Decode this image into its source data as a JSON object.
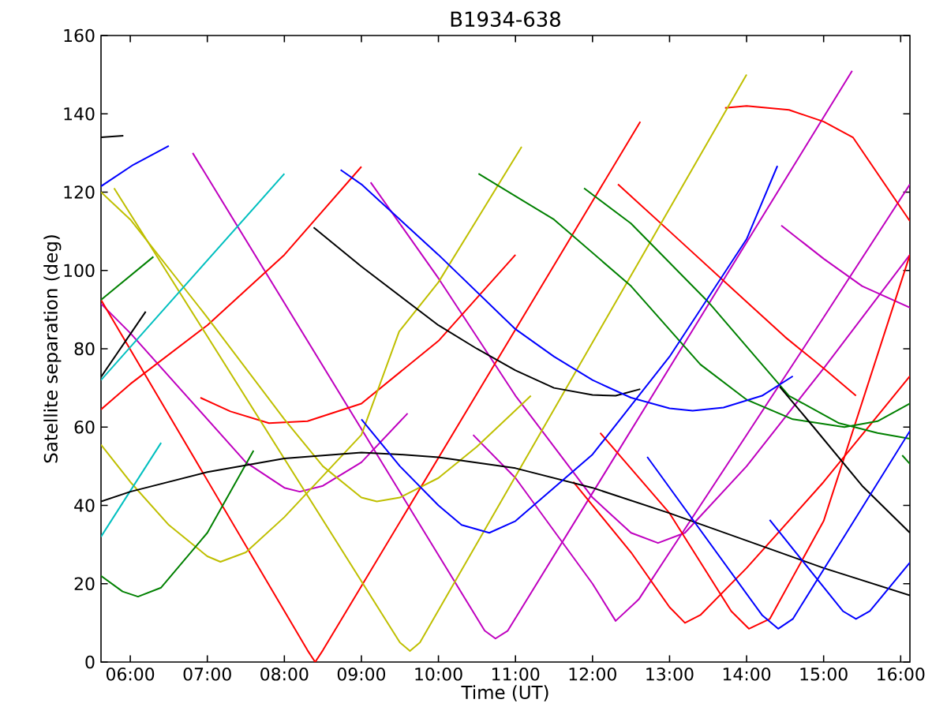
{
  "chart_data": {
    "type": "line",
    "title": "B1934-638",
    "xlabel": "Time (UT)",
    "ylabel": "Satellite separation (deg)",
    "xlim": [
      5.62,
      16.12
    ],
    "ylim": [
      0,
      160
    ],
    "xticks": [
      {
        "value": 6,
        "label": "06:00"
      },
      {
        "value": 7,
        "label": "07:00"
      },
      {
        "value": 8,
        "label": "08:00"
      },
      {
        "value": 9,
        "label": "09:00"
      },
      {
        "value": 10,
        "label": "10:00"
      },
      {
        "value": 11,
        "label": "11:00"
      },
      {
        "value": 12,
        "label": "12:00"
      },
      {
        "value": 13,
        "label": "13:00"
      },
      {
        "value": 14,
        "label": "14:00"
      },
      {
        "value": 15,
        "label": "15:00"
      },
      {
        "value": 16,
        "label": "16:00"
      }
    ],
    "yticks": [
      0,
      20,
      40,
      60,
      80,
      100,
      120,
      140,
      160
    ],
    "grid": false,
    "line_style": "solid",
    "series": [
      {
        "color": "#000000",
        "x": [
          5.62,
          5.91
        ],
        "values": [
          134,
          134.4
        ]
      },
      {
        "color": "#0000ff",
        "x": [
          5.62,
          6.04,
          6.5
        ],
        "values": [
          121.5,
          127,
          131.8
        ]
      },
      {
        "color": "#bf00bf",
        "x": [
          6.81,
          10.6,
          10.74,
          10.9,
          15.37
        ],
        "values": [
          130,
          8,
          6,
          8,
          151
        ]
      },
      {
        "color": "#bf00bf",
        "x": [
          9.12,
          10,
          11,
          12,
          12.5,
          12.85,
          13.2,
          14,
          15,
          16.12
        ],
        "values": [
          122.5,
          98,
          68,
          42,
          33,
          30.4,
          33,
          50,
          75,
          104
        ]
      },
      {
        "color": "#bf00bf",
        "x": [
          10.45,
          11,
          12,
          12.3,
          12.6,
          13,
          14,
          15,
          16.12
        ],
        "values": [
          58,
          47,
          20,
          10.5,
          16,
          28,
          58,
          88,
          122
        ]
      },
      {
        "color": "#bf00bf",
        "x": [
          5.62,
          6,
          7,
          7.5,
          8,
          8.2,
          8.5,
          9,
          9.6
        ],
        "values": [
          91.5,
          84,
          62,
          51,
          44.5,
          43.5,
          45,
          51,
          63.5
        ]
      },
      {
        "color": "#bf00bf",
        "x": [
          14.45,
          15,
          15.5,
          16.12
        ],
        "values": [
          111.5,
          103,
          96,
          90.5
        ]
      },
      {
        "color": "#ff0000",
        "x": [
          5.62,
          8.3,
          8.4,
          8.5,
          12.62
        ],
        "values": [
          92.5,
          3,
          0,
          3,
          138
        ]
      },
      {
        "color": "#ff0000",
        "x": [
          5.62,
          6,
          7,
          8,
          9
        ],
        "values": [
          64.5,
          71,
          86,
          104,
          126.5
        ]
      },
      {
        "color": "#ff0000",
        "x": [
          6.91,
          7.3,
          7.8,
          8.3,
          9,
          10,
          11
        ],
        "values": [
          67.5,
          64,
          61,
          61.5,
          66,
          82,
          104
        ]
      },
      {
        "color": "#ff0000",
        "x": [
          12.1,
          13,
          13.8,
          14.03,
          14.3,
          15,
          16.12
        ],
        "values": [
          58.5,
          38,
          13,
          8.5,
          11,
          36,
          104
        ]
      },
      {
        "color": "#ff0000",
        "x": [
          11.75,
          12.5,
          13,
          13.2,
          13.4,
          14,
          15,
          16.12
        ],
        "values": [
          46,
          28,
          14,
          10,
          12,
          24,
          46,
          73
        ]
      },
      {
        "color": "#ff0000",
        "x": [
          12.33,
          13,
          14,
          14.5,
          15,
          15.42
        ],
        "values": [
          122,
          110,
          92,
          83,
          75,
          68
        ]
      },
      {
        "color": "#ff0000",
        "x": [
          13.72,
          14,
          14.55,
          15,
          15.38,
          16.12
        ],
        "values": [
          141.5,
          142,
          141,
          138,
          134,
          112.6
        ]
      },
      {
        "color": "#bfbf00",
        "x": [
          5.62,
          6,
          7,
          8,
          8.5,
          9,
          9.2,
          9.5,
          10,
          10.5,
          11.2
        ],
        "values": [
          120,
          113,
          88,
          62,
          50,
          42,
          41,
          42,
          47,
          55,
          68
        ]
      },
      {
        "color": "#bfbf00",
        "x": [
          5.79,
          9.5,
          9.63,
          9.76,
          14
        ],
        "values": [
          121,
          5,
          2.8,
          5,
          150
        ]
      },
      {
        "color": "#bfbf00",
        "x": [
          5.62,
          6,
          6.5,
          7,
          7.17,
          7.5,
          8,
          9,
          9.49,
          10,
          10.5,
          11.08
        ],
        "values": [
          55.5,
          46,
          35,
          27,
          25.6,
          28,
          37,
          58,
          84.4,
          97,
          113,
          131.6
        ]
      },
      {
        "color": "#00bfbf",
        "x": [
          5.62,
          8
        ],
        "values": [
          72,
          124.7
        ]
      },
      {
        "color": "#00bfbf",
        "x": [
          5.62,
          6.4
        ],
        "values": [
          32,
          56
        ]
      },
      {
        "color": "#008000",
        "x": [
          5.62,
          6.3
        ],
        "values": [
          92.5,
          103.5
        ]
      },
      {
        "color": "#008000",
        "x": [
          5.62,
          5.9,
          6.1,
          6.4,
          7,
          7.6
        ],
        "values": [
          22,
          18,
          16.7,
          19,
          33,
          54
        ]
      },
      {
        "color": "#008000",
        "x": [
          10.52,
          11.5,
          12.5,
          13.4,
          14,
          14.6,
          15.27,
          15.7,
          16.12
        ],
        "values": [
          124.7,
          113,
          96,
          76,
          67,
          62,
          60,
          61.5,
          66
        ]
      },
      {
        "color": "#008000",
        "x": [
          11.89,
          12.5,
          13.5,
          14.55,
          15.2,
          15.7,
          16.12
        ],
        "values": [
          121,
          112,
          92,
          68,
          61,
          58.5,
          57
        ]
      },
      {
        "color": "#008000",
        "x": [
          16.02,
          16.12
        ],
        "values": [
          52.8,
          50.6
        ]
      },
      {
        "color": "#000000",
        "x": [
          5.62,
          6.2
        ],
        "values": [
          72.8,
          89.5
        ]
      },
      {
        "color": "#000000",
        "x": [
          8.38,
          9,
          10,
          10.5,
          11,
          11.5,
          12,
          12.3,
          12.62
        ],
        "values": [
          111,
          101,
          86,
          80,
          74.5,
          70,
          68.2,
          68,
          69.7
        ]
      },
      {
        "color": "#000000",
        "x": [
          14.43,
          14.87,
          15.5,
          16.12
        ],
        "values": [
          70.3,
          60,
          45,
          33
        ]
      },
      {
        "color": "#000000",
        "x": [
          5.62,
          6,
          7,
          8,
          9,
          9.5,
          10,
          11,
          12,
          13,
          14,
          15,
          16.12
        ],
        "values": [
          41,
          43.5,
          48.5,
          52,
          53.5,
          53,
          52.3,
          49.5,
          44.5,
          38,
          31,
          24,
          17
        ]
      },
      {
        "color": "#0000ff",
        "x": [
          8.73,
          9,
          10,
          11,
          11.5,
          12,
          12.5,
          13,
          13.3,
          13.7,
          14.2,
          14.6
        ],
        "values": [
          125.7,
          122,
          104,
          85,
          78,
          72,
          67.5,
          64.8,
          64.2,
          65,
          68,
          73
        ]
      },
      {
        "color": "#0000ff",
        "x": [
          9,
          9.5,
          10,
          10.3,
          10.66,
          11,
          12,
          13,
          14,
          14.4
        ],
        "values": [
          62,
          50,
          40,
          35,
          33,
          36,
          53,
          78,
          108,
          126.7
        ]
      },
      {
        "color": "#0000ff",
        "x": [
          12.71,
          14.2,
          14.41,
          14.6,
          16.12
        ],
        "values": [
          52.4,
          12,
          8.5,
          11,
          59
        ]
      },
      {
        "color": "#0000ff",
        "x": [
          14.3,
          15.25,
          15.42,
          15.6,
          16.12
        ],
        "values": [
          36.3,
          13,
          11,
          13,
          25.4
        ]
      }
    ]
  }
}
